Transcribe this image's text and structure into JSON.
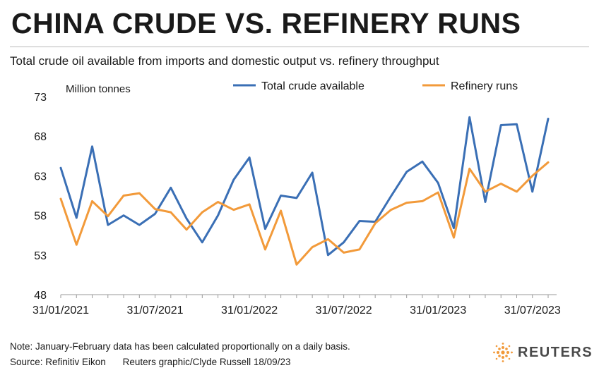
{
  "title": "CHINA CRUDE VS. REFINERY RUNS",
  "subtitle": "Total crude oil available from imports and domestic output vs. refinery throughput",
  "note": "Note: January-February data has been calculated proportionally on a daily basis.",
  "source": "Source: Refinitiv Eikon",
  "credit": "Reuters graphic/Clyde Russell 18/09/23",
  "brand": "REUTERS",
  "colors": {
    "total": "#3a6fb5",
    "refinery": "#f29a3a",
    "axis": "#9a9a9a"
  },
  "chart_data": {
    "type": "line",
    "ylabel": "Million tonnes",
    "ylim": [
      48,
      73
    ],
    "yticks": [
      48,
      53,
      58,
      63,
      68,
      73
    ],
    "x_tick_labels": [
      "31/01/2021",
      "31/07/2021",
      "31/01/2022",
      "31/07/2022",
      "31/01/2023",
      "31/07/2023"
    ],
    "x_tick_index": [
      0,
      6,
      12,
      18,
      24,
      30
    ],
    "x_count": 32,
    "legend_position": "top",
    "series": [
      {
        "name": "Total crude available",
        "values": [
          64.0,
          57.7,
          66.7,
          56.8,
          58.0,
          56.8,
          58.2,
          61.5,
          57.6,
          54.6,
          58.0,
          62.5,
          65.3,
          56.3,
          60.5,
          60.2,
          63.4,
          53.0,
          54.6,
          57.3,
          57.2,
          60.4,
          63.5,
          64.8,
          62.1,
          56.4,
          70.4,
          59.7,
          69.4,
          69.5,
          61.0,
          70.2
        ]
      },
      {
        "name": "Refinery runs",
        "values": [
          60.1,
          54.3,
          59.8,
          57.9,
          60.5,
          60.8,
          58.8,
          58.4,
          56.2,
          58.4,
          59.7,
          58.7,
          59.4,
          53.7,
          58.6,
          51.8,
          54.0,
          55.0,
          53.3,
          53.7,
          57.0,
          58.7,
          59.6,
          59.8,
          60.9,
          55.2,
          63.9,
          61.0,
          62.0,
          61.0,
          63.0,
          64.7
        ]
      }
    ]
  }
}
